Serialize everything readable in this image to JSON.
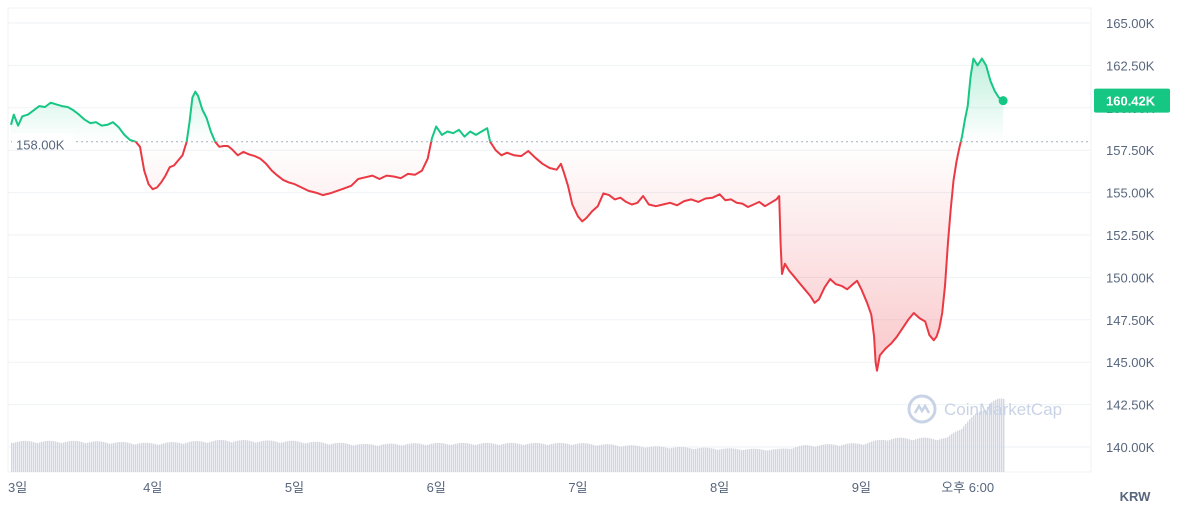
{
  "chart_data": {
    "type": "area",
    "ylim": [
      140000,
      165000
    ],
    "yticks": [
      {
        "value": 165000,
        "label": "165.00K"
      },
      {
        "value": 162500,
        "label": "162.50K"
      },
      {
        "value": 160000,
        "label": "160.00K"
      },
      {
        "value": 157500,
        "label": "157.50K"
      },
      {
        "value": 155000,
        "label": "155.00K"
      },
      {
        "value": 152500,
        "label": "152.50K"
      },
      {
        "value": 150000,
        "label": "150.00K"
      },
      {
        "value": 147500,
        "label": "147.50K"
      },
      {
        "value": 145000,
        "label": "145.00K"
      },
      {
        "value": 142500,
        "label": "142.50K"
      },
      {
        "value": 140000,
        "label": "140.00K"
      }
    ],
    "xlim": [
      0,
      7.62
    ],
    "xticks": [
      {
        "value": 0.0,
        "label": "3일"
      },
      {
        "value": 1.0,
        "label": "4일"
      },
      {
        "value": 2.0,
        "label": "5일"
      },
      {
        "value": 3.0,
        "label": "6일"
      },
      {
        "value": 4.0,
        "label": "7일"
      },
      {
        "value": 5.0,
        "label": "8일"
      },
      {
        "value": 6.0,
        "label": "9일"
      },
      {
        "value": 6.75,
        "label": "오후 6:00"
      }
    ],
    "baseline": {
      "value": 158000,
      "label": "158.00K"
    },
    "current_price": {
      "value": 160420,
      "label": "160.42K"
    },
    "unit": "KRW",
    "watermark": "CoinMarketCap",
    "colors": {
      "up": "#16c784",
      "down": "#ea3943",
      "grid": "#eff2f5",
      "volume": "#cfd6e4",
      "badge": "#16c784"
    },
    "series": [
      {
        "price_points": [
          [
            0.0,
            159000
          ],
          [
            0.02,
            159600
          ],
          [
            0.05,
            158950
          ],
          [
            0.08,
            159500
          ],
          [
            0.12,
            159600
          ],
          [
            0.16,
            159850
          ],
          [
            0.2,
            160100
          ],
          [
            0.24,
            160050
          ],
          [
            0.28,
            160300
          ],
          [
            0.32,
            160200
          ],
          [
            0.36,
            160100
          ],
          [
            0.4,
            160050
          ],
          [
            0.44,
            159850
          ],
          [
            0.48,
            159600
          ],
          [
            0.52,
            159300
          ],
          [
            0.56,
            159100
          ],
          [
            0.6,
            159150
          ],
          [
            0.64,
            158950
          ],
          [
            0.68,
            159000
          ],
          [
            0.72,
            159150
          ],
          [
            0.76,
            158850
          ],
          [
            0.8,
            158400
          ],
          [
            0.84,
            158100
          ],
          [
            0.88,
            158000
          ],
          [
            0.91,
            157700
          ],
          [
            0.94,
            156300
          ],
          [
            0.97,
            155500
          ],
          [
            1.0,
            155200
          ],
          [
            1.03,
            155300
          ],
          [
            1.06,
            155600
          ],
          [
            1.09,
            156000
          ],
          [
            1.12,
            156500
          ],
          [
            1.15,
            156600
          ],
          [
            1.18,
            156900
          ],
          [
            1.21,
            157200
          ],
          [
            1.24,
            158000
          ],
          [
            1.26,
            159200
          ],
          [
            1.28,
            160600
          ],
          [
            1.3,
            160950
          ],
          [
            1.32,
            160700
          ],
          [
            1.35,
            159900
          ],
          [
            1.38,
            159400
          ],
          [
            1.41,
            158600
          ],
          [
            1.44,
            158000
          ],
          [
            1.47,
            157700
          ],
          [
            1.5,
            157750
          ],
          [
            1.53,
            157750
          ],
          [
            1.56,
            157550
          ],
          [
            1.6,
            157200
          ],
          [
            1.64,
            157400
          ],
          [
            1.68,
            157250
          ],
          [
            1.72,
            157150
          ],
          [
            1.76,
            157000
          ],
          [
            1.8,
            156700
          ],
          [
            1.84,
            156300
          ],
          [
            1.88,
            156000
          ],
          [
            1.92,
            155750
          ],
          [
            1.96,
            155600
          ],
          [
            2.0,
            155500
          ],
          [
            2.05,
            155300
          ],
          [
            2.1,
            155100
          ],
          [
            2.15,
            155000
          ],
          [
            2.2,
            154850
          ],
          [
            2.25,
            154950
          ],
          [
            2.3,
            155100
          ],
          [
            2.35,
            155250
          ],
          [
            2.4,
            155400
          ],
          [
            2.45,
            155800
          ],
          [
            2.5,
            155900
          ],
          [
            2.55,
            156000
          ],
          [
            2.6,
            155800
          ],
          [
            2.65,
            156000
          ],
          [
            2.7,
            155950
          ],
          [
            2.75,
            155850
          ],
          [
            2.8,
            156100
          ],
          [
            2.85,
            156050
          ],
          [
            2.9,
            156300
          ],
          [
            2.94,
            157000
          ],
          [
            2.97,
            158200
          ],
          [
            3.0,
            158900
          ],
          [
            3.04,
            158400
          ],
          [
            3.08,
            158600
          ],
          [
            3.12,
            158500
          ],
          [
            3.16,
            158700
          ],
          [
            3.2,
            158300
          ],
          [
            3.24,
            158600
          ],
          [
            3.28,
            158400
          ],
          [
            3.32,
            158600
          ],
          [
            3.36,
            158800
          ],
          [
            3.38,
            158000
          ],
          [
            3.42,
            157500
          ],
          [
            3.46,
            157200
          ],
          [
            3.5,
            157350
          ],
          [
            3.55,
            157200
          ],
          [
            3.6,
            157150
          ],
          [
            3.65,
            157450
          ],
          [
            3.7,
            157050
          ],
          [
            3.75,
            156700
          ],
          [
            3.8,
            156450
          ],
          [
            3.85,
            156350
          ],
          [
            3.88,
            156700
          ],
          [
            3.9,
            156200
          ],
          [
            3.93,
            155400
          ],
          [
            3.96,
            154300
          ],
          [
            4.0,
            153600
          ],
          [
            4.03,
            153300
          ],
          [
            4.06,
            153500
          ],
          [
            4.1,
            153900
          ],
          [
            4.14,
            154200
          ],
          [
            4.18,
            154950
          ],
          [
            4.22,
            154850
          ],
          [
            4.26,
            154600
          ],
          [
            4.3,
            154700
          ],
          [
            4.34,
            154450
          ],
          [
            4.38,
            154300
          ],
          [
            4.42,
            154400
          ],
          [
            4.46,
            154800
          ],
          [
            4.5,
            154300
          ],
          [
            4.55,
            154200
          ],
          [
            4.6,
            154300
          ],
          [
            4.65,
            154400
          ],
          [
            4.7,
            154250
          ],
          [
            4.75,
            154500
          ],
          [
            4.8,
            154600
          ],
          [
            4.85,
            154450
          ],
          [
            4.9,
            154650
          ],
          [
            4.95,
            154700
          ],
          [
            5.0,
            154900
          ],
          [
            5.04,
            154550
          ],
          [
            5.08,
            154600
          ],
          [
            5.12,
            154400
          ],
          [
            5.16,
            154350
          ],
          [
            5.2,
            154150
          ],
          [
            5.24,
            154300
          ],
          [
            5.28,
            154450
          ],
          [
            5.32,
            154200
          ],
          [
            5.36,
            154400
          ],
          [
            5.4,
            154600
          ],
          [
            5.42,
            154800
          ],
          [
            5.43,
            152000
          ],
          [
            5.44,
            150200
          ],
          [
            5.46,
            150800
          ],
          [
            5.49,
            150400
          ],
          [
            5.52,
            150100
          ],
          [
            5.56,
            149700
          ],
          [
            5.6,
            149300
          ],
          [
            5.64,
            148900
          ],
          [
            5.67,
            148500
          ],
          [
            5.7,
            148700
          ],
          [
            5.74,
            149400
          ],
          [
            5.78,
            149900
          ],
          [
            5.82,
            149600
          ],
          [
            5.86,
            149500
          ],
          [
            5.9,
            149300
          ],
          [
            5.94,
            149600
          ],
          [
            5.97,
            149800
          ],
          [
            6.0,
            149300
          ],
          [
            6.04,
            148500
          ],
          [
            6.07,
            147800
          ],
          [
            6.09,
            146500
          ],
          [
            6.1,
            145000
          ],
          [
            6.11,
            144500
          ],
          [
            6.13,
            145400
          ],
          [
            6.17,
            145800
          ],
          [
            6.21,
            146100
          ],
          [
            6.25,
            146500
          ],
          [
            6.29,
            147000
          ],
          [
            6.33,
            147500
          ],
          [
            6.37,
            147900
          ],
          [
            6.41,
            147600
          ],
          [
            6.45,
            147400
          ],
          [
            6.48,
            146600
          ],
          [
            6.51,
            146300
          ],
          [
            6.53,
            146500
          ],
          [
            6.55,
            147000
          ],
          [
            6.57,
            147900
          ],
          [
            6.59,
            149500
          ],
          [
            6.61,
            152000
          ],
          [
            6.63,
            154000
          ],
          [
            6.65,
            155700
          ],
          [
            6.67,
            156800
          ],
          [
            6.69,
            157600
          ],
          [
            6.71,
            158300
          ],
          [
            6.73,
            159300
          ],
          [
            6.75,
            160100
          ],
          [
            6.77,
            161800
          ],
          [
            6.79,
            162900
          ],
          [
            6.82,
            162500
          ],
          [
            6.85,
            162900
          ],
          [
            6.88,
            162500
          ],
          [
            6.91,
            161600
          ],
          [
            6.94,
            161000
          ],
          [
            6.97,
            160600
          ],
          [
            7.0,
            160420
          ]
        ],
        "volume_points": [
          [
            0.0,
            0.3
          ],
          [
            0.5,
            0.3
          ],
          [
            1.0,
            0.28
          ],
          [
            1.5,
            0.31
          ],
          [
            2.0,
            0.3
          ],
          [
            2.5,
            0.27
          ],
          [
            3.0,
            0.28
          ],
          [
            3.5,
            0.28
          ],
          [
            4.0,
            0.28
          ],
          [
            4.5,
            0.25
          ],
          [
            5.0,
            0.23
          ],
          [
            5.4,
            0.22
          ],
          [
            5.6,
            0.26
          ],
          [
            6.0,
            0.28
          ],
          [
            6.2,
            0.33
          ],
          [
            6.6,
            0.33
          ],
          [
            6.75,
            0.5
          ],
          [
            6.9,
            0.68
          ],
          [
            7.0,
            0.72
          ]
        ]
      }
    ]
  }
}
